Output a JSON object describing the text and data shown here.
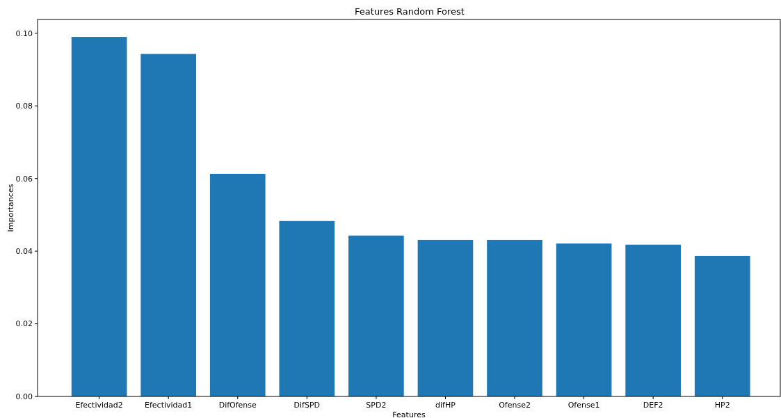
{
  "chart_data": {
    "type": "bar",
    "title": "Features Random Forest",
    "xlabel": "Features",
    "ylabel": "Importances",
    "categories": [
      "Efectividad2",
      "Efectividad1",
      "DifOfense",
      "DifSPD",
      "SPD2",
      "difHP",
      "Ofense2",
      "Ofense1",
      "DEF2",
      "HP2"
    ],
    "values": [
      0.099,
      0.0943,
      0.0613,
      0.0483,
      0.0443,
      0.0431,
      0.0431,
      0.0421,
      0.0418,
      0.0387
    ],
    "color": "#1f77b4",
    "ylim": [
      0,
      0.1038
    ],
    "yticks": [
      {
        "value": 0,
        "label": "0.00"
      },
      {
        "value": 0.02,
        "label": "0.02"
      },
      {
        "value": 0.04,
        "label": "0.04"
      },
      {
        "value": 0.06,
        "label": "0.06"
      },
      {
        "value": 0.08,
        "label": "0.08"
      },
      {
        "value": 0.1,
        "label": "0.10"
      }
    ]
  }
}
